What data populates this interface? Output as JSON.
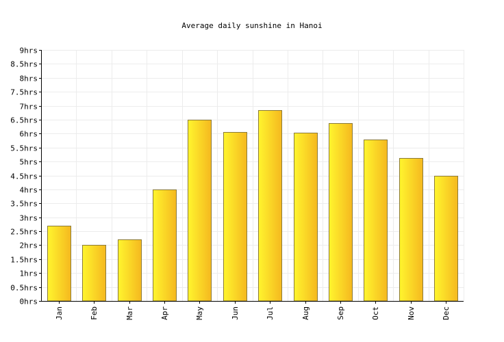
{
  "chart_data": {
    "type": "bar",
    "title": "Average daily sunshine in Hanoi",
    "xlabel": "",
    "ylabel": "",
    "categories": [
      "Jan",
      "Feb",
      "Mar",
      "Apr",
      "May",
      "Jun",
      "Jul",
      "Aug",
      "Sep",
      "Oct",
      "Nov",
      "Dec"
    ],
    "values": [
      2.7,
      2.0,
      2.2,
      4.0,
      6.5,
      6.05,
      6.83,
      6.03,
      6.37,
      5.78,
      5.12,
      4.5
    ],
    "ylim": [
      0,
      9
    ],
    "yticks": [
      "0hrs",
      "0.5hrs",
      "1hrs",
      "1.5hrs",
      "2hrs",
      "2.5hrs",
      "3hrs",
      "3.5hrs",
      "4hrs",
      "4.5hrs",
      "5hrs",
      "5.5hrs",
      "6hrs",
      "6.5hrs",
      "7hrs",
      "7.5hrs",
      "8hrs",
      "8.5hrs",
      "9hrs"
    ],
    "grid": true,
    "colors": {
      "bar_light": "#fff52e",
      "bar_dark": "#f5b81f",
      "bar_border": "#8a7a3a",
      "grid": "#ececec",
      "axis": "#000000"
    }
  }
}
